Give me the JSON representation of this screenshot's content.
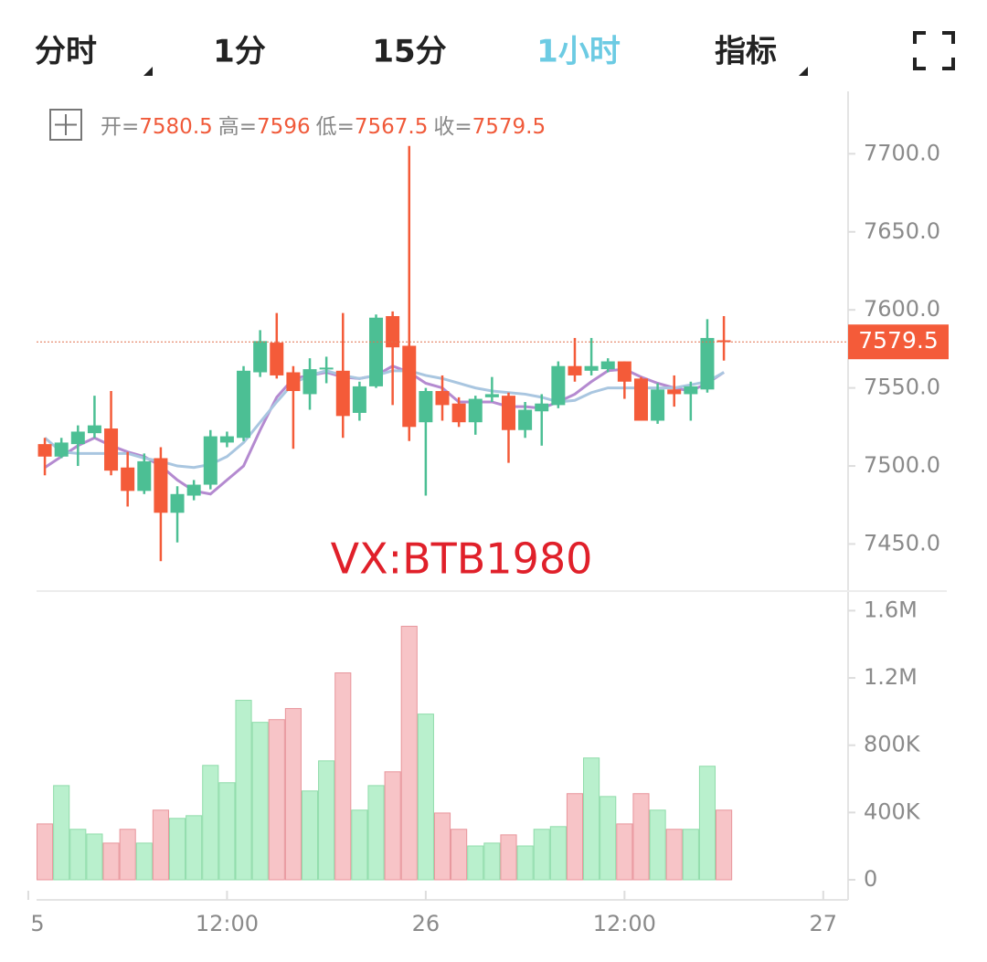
{
  "tabs": [
    "分时",
    "1分",
    "15分",
    "1小时",
    "指标"
  ],
  "ohlc_labels": [
    "开=",
    "高=",
    "低=",
    "收="
  ],
  "chart_data": {
    "type": "candlestick",
    "watermark": "VX:BTB1980",
    "up_color": "#4cbf94",
    "down_color": "#f45b39",
    "volume_up_color": "#b9f0cd",
    "volume_down_color": "#f7c4c7",
    "open": [
      7514,
      7506,
      7514,
      7521,
      7524,
      7499,
      7484,
      7505,
      7470,
      7481,
      7488,
      7515,
      7518,
      7560,
      7579,
      7560,
      7546,
      7562,
      7561,
      7534,
      7551,
      7596,
      7577,
      7528,
      7548,
      7540,
      7528,
      7544,
      7545,
      7523,
      7535,
      7539,
      7564,
      7561,
      7562,
      7567,
      7556,
      7529,
      7549,
      7546,
      7549,
      7580.5
    ],
    "high": [
      7518,
      7518,
      7526,
      7545,
      7548,
      7509,
      7508,
      7512,
      7487,
      7491,
      7523,
      7522,
      7564,
      7587,
      7598,
      7564,
      7569,
      7570,
      7598,
      7554,
      7597,
      7599,
      7705,
      7550,
      7558,
      7544,
      7545,
      7557,
      7547,
      7541,
      7546,
      7567,
      7582,
      7582,
      7569,
      7567,
      7557,
      7553,
      7558,
      7554,
      7594,
      7596.0
    ],
    "low": [
      7494,
      7505,
      7500,
      7518,
      7494,
      7474,
      7482,
      7439,
      7451,
      7478,
      7485,
      7512,
      7516,
      7557,
      7556,
      7511,
      7536,
      7553,
      7518,
      7529,
      7550,
      7539,
      7516,
      7481,
      7529,
      7525,
      7520,
      7541,
      7502,
      7518,
      7513,
      7537,
      7554,
      7558,
      7560,
      7543,
      7529,
      7527,
      7538,
      7529,
      7547,
      7567.5
    ],
    "close": [
      7506,
      7515,
      7522,
      7526,
      7497,
      7484,
      7503,
      7470,
      7482,
      7488,
      7519,
      7519,
      7561,
      7580,
      7558,
      7548,
      7562,
      7563,
      7532,
      7551,
      7595,
      7576,
      7525,
      7548,
      7539,
      7528,
      7543,
      7546,
      7523,
      7536,
      7540,
      7564,
      7558,
      7564,
      7567,
      7554,
      7529,
      7549,
      7546,
      7551,
      7582,
      7579.5
    ],
    "volume": [
      332000,
      560000,
      300000,
      272000,
      218000,
      300000,
      218000,
      414000,
      365000,
      381000,
      680000,
      577000,
      1067000,
      936000,
      952000,
      1018000,
      528000,
      707000,
      1230000,
      414000,
      560000,
      642000,
      1507000,
      985000,
      397000,
      300000,
      201000,
      218000,
      267000,
      201000,
      300000,
      316000,
      512000,
      724000,
      495000,
      332000,
      512000,
      414000,
      300000,
      300000,
      675000,
      414000
    ],
    "ma": [
      {
        "color": "#b48ad0",
        "values": [
          7499,
          7506,
          7513,
          7518,
          7513,
          7509,
          7506,
          7500,
          7491,
          7484,
          7482,
          7491,
          7500,
          7523,
          7544,
          7556,
          7558,
          7560,
          7557,
          7556,
          7558,
          7564,
          7560,
          7553,
          7550,
          7541,
          7541,
          7541,
          7538,
          7538,
          7537,
          7541,
          7546,
          7554,
          7561,
          7562,
          7557,
          7553,
          7550,
          7548,
          7553,
          7560
        ]
      },
      {
        "color": "#a9c6e0",
        "values": [
          7518,
          7509,
          7508,
          7508,
          7508,
          7508,
          7505,
          7503,
          7500,
          7499,
          7501,
          7506,
          7515,
          7528,
          7541,
          7553,
          7558,
          7561,
          7558,
          7556,
          7558,
          7561,
          7561,
          7558,
          7556,
          7553,
          7550,
          7548,
          7547,
          7546,
          7544,
          7541,
          7542,
          7547,
          7550,
          7550,
          7550,
          7550,
          7550,
          7552,
          7554,
          7560
        ]
      }
    ],
    "ylim": [
      7421,
      7740
    ],
    "yticks": [
      {
        "value": 7450,
        "label": "7450.0"
      },
      {
        "value": 7500,
        "label": "7500.0"
      },
      {
        "value": 7550,
        "label": "7550.0"
      },
      {
        "value": 7600,
        "label": "7600.0"
      },
      {
        "value": 7650,
        "label": "7650.0"
      },
      {
        "value": 7700,
        "label": "7700.0"
      }
    ],
    "volume_ylim": [
      0,
      1700000
    ],
    "volume_yticks": [
      0,
      {
        "value": 400000,
        "label": "400K"
      },
      {
        "value": 800000,
        "label": "800K"
      },
      {
        "value": 1200000,
        "label": "1.2M"
      },
      {
        "value": 1600000,
        "label": "1.6M"
      }
    ],
    "xlim": [
      -0.5,
      48.5
    ],
    "xticks": [
      {
        "value": -1,
        "label": "5"
      },
      {
        "value": 11,
        "label": "12:00"
      },
      {
        "value": 23,
        "label": "26"
      },
      {
        "value": 35,
        "label": "12:00"
      },
      {
        "value": 47,
        "label": "27"
      }
    ]
  }
}
